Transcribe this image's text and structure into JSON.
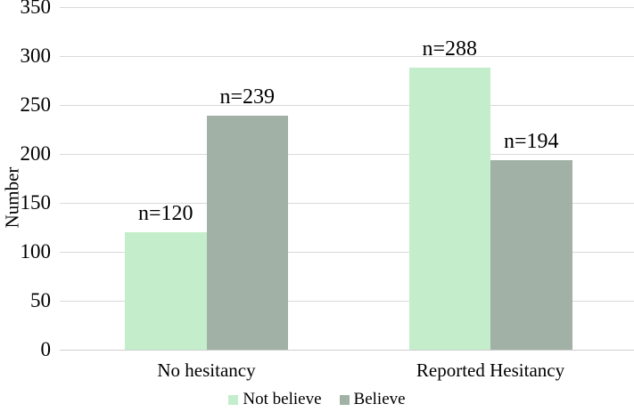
{
  "chart_data": {
    "type": "bar",
    "title": "",
    "xlabel": "",
    "ylabel": "Number",
    "ylim": [
      0,
      350
    ],
    "yticks": [
      0,
      50,
      100,
      150,
      200,
      250,
      300,
      350
    ],
    "categories": [
      "No hesitancy",
      "Reported Hesitancy"
    ],
    "series": [
      {
        "name": "Not believe",
        "color": "#c4eecb",
        "values": [
          120,
          288
        ],
        "point_labels": [
          "n=120",
          "n=288"
        ]
      },
      {
        "name": "Believe",
        "color": "#a1b1a5",
        "values": [
          239,
          194
        ],
        "point_labels": [
          "n=239",
          "n=194"
        ]
      }
    ],
    "grid": "horizontal",
    "legend_position": "bottom"
  },
  "colors": {
    "background": "#ffffff",
    "gridline": "#d9d9d9",
    "axis_line": "#cfcfcf",
    "text": "#000000"
  }
}
